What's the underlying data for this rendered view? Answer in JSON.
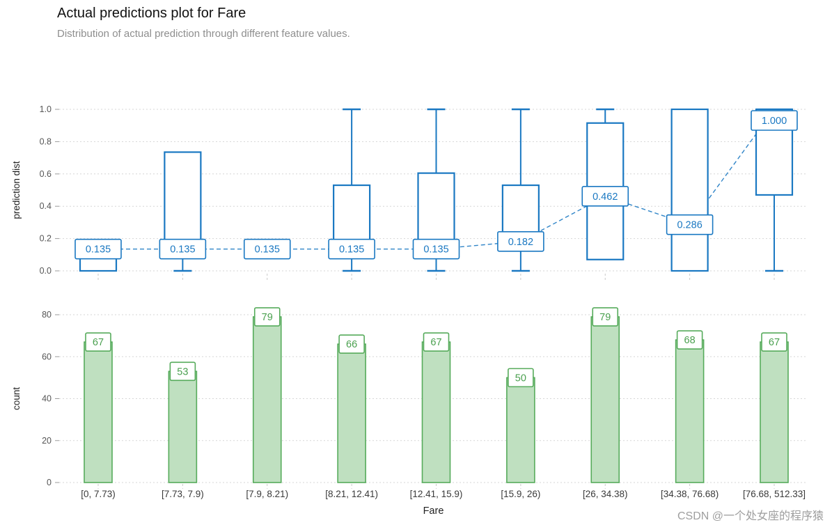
{
  "header": {
    "title": "Actual predictions plot for Fare",
    "subtitle": "Distribution of actual prediction through different feature values."
  },
  "watermark": "CSDN @一个处女座的程序猿",
  "colors": {
    "box": "#1a78c2",
    "grid": "#d6d6d6",
    "tick_text": "#555555",
    "axis_text": "#3a3a3a",
    "bar_fill": "#bfe0c0",
    "bar_edge": "#56ab5b",
    "bar_label": "#4aa04f"
  },
  "chart_data": [
    {
      "type": "boxplot",
      "title": "Actual predictions plot for Fare",
      "ylabel": "prediction dist",
      "ylim": [
        0.0,
        1.0
      ],
      "yticks": [
        0.0,
        0.2,
        0.4,
        0.6,
        0.8,
        1.0
      ],
      "grid": true,
      "legend": "none",
      "categories": [
        "[0, 7.73)",
        "[7.73, 7.9)",
        "[7.9, 8.21)",
        "[8.21, 12.41)",
        "[12.41, 15.9)",
        "[15.9, 26)",
        "[26, 34.38)",
        "[34.38, 76.68)",
        "[76.68, 512.33]"
      ],
      "boxes": [
        {
          "whisker_low": 0.0,
          "q1": 0.0,
          "median": 0.135,
          "q3": 0.16,
          "whisker_high": 0.16,
          "label": "0.135"
        },
        {
          "whisker_low": 0.0,
          "q1": 0.135,
          "median": 0.135,
          "q3": 0.735,
          "whisker_high": 0.735,
          "label": "0.135"
        },
        {
          "whisker_low": 0.135,
          "q1": 0.135,
          "median": 0.135,
          "q3": 0.135,
          "whisker_high": 0.135,
          "label": "0.135"
        },
        {
          "whisker_low": 0.0,
          "q1": 0.135,
          "median": 0.135,
          "q3": 0.53,
          "whisker_high": 1.0,
          "label": "0.135"
        },
        {
          "whisker_low": 0.0,
          "q1": 0.135,
          "median": 0.135,
          "q3": 0.605,
          "whisker_high": 1.0,
          "label": "0.135"
        },
        {
          "whisker_low": 0.0,
          "q1": 0.14,
          "median": 0.182,
          "q3": 0.53,
          "whisker_high": 1.0,
          "label": "0.182"
        },
        {
          "whisker_low": 0.07,
          "q1": 0.07,
          "median": 0.462,
          "q3": 0.915,
          "whisker_high": 1.0,
          "label": "0.462"
        },
        {
          "whisker_low": 0.0,
          "q1": 0.0,
          "median": 0.286,
          "q3": 1.0,
          "whisker_high": 1.0,
          "label": "0.286"
        },
        {
          "whisker_low": 0.0,
          "q1": 0.47,
          "median": 1.0,
          "q3": 1.0,
          "whisker_high": 1.0,
          "label": "1.000"
        }
      ],
      "medians": [
        0.135,
        0.135,
        0.135,
        0.135,
        0.135,
        0.182,
        0.462,
        0.286,
        1.0
      ]
    },
    {
      "type": "bar",
      "ylabel": "count",
      "xlabel": "Fare",
      "ylim": [
        0,
        80
      ],
      "yticks": [
        0,
        20,
        40,
        60,
        80
      ],
      "grid": true,
      "categories": [
        "[0, 7.73)",
        "[7.73, 7.9)",
        "[7.9, 8.21)",
        "[8.21, 12.41)",
        "[12.41, 15.9)",
        "[15.9, 26)",
        "[26, 34.38)",
        "[34.38, 76.68)",
        "[76.68, 512.33]"
      ],
      "values": [
        67,
        53,
        79,
        66,
        67,
        50,
        79,
        68,
        67
      ]
    }
  ]
}
